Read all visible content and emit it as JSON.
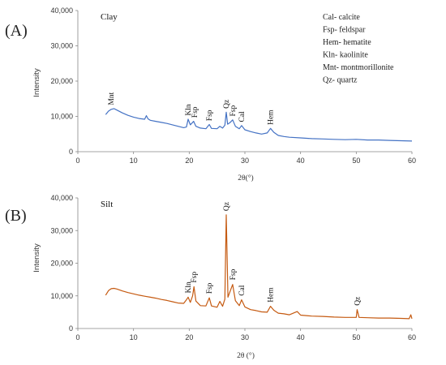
{
  "chart_data": [
    {
      "type": "line",
      "panel_label": "(A)",
      "sample_label": "Clay",
      "xlabel": "2θ(°)",
      "ylabel": "Intensity",
      "xlim": [
        0,
        60
      ],
      "ylim": [
        0,
        40000
      ],
      "x_ticks": [
        "0",
        "10",
        "20",
        "30",
        "40",
        "50",
        "60"
      ],
      "y_ticks": [
        "0",
        "10,000",
        "20,000",
        "30,000",
        "40,000"
      ],
      "color": "#4472C4",
      "grid": false,
      "series": [
        {
          "x": [
            5,
            5.5,
            6,
            6.5,
            7,
            8,
            9,
            10,
            11,
            12,
            12.3,
            12.6,
            13,
            14,
            15,
            16,
            17,
            18,
            19,
            19.5,
            19.8,
            20.2,
            20.8,
            21.2,
            22,
            23,
            23.6,
            24,
            25,
            25.5,
            26,
            26.4,
            26.65,
            26.9,
            27.3,
            27.8,
            28.3,
            29,
            29.4,
            30,
            31,
            32,
            33,
            34,
            34.6,
            35.2,
            36,
            37,
            38,
            40,
            42,
            44,
            46,
            48,
            50,
            52,
            54,
            56,
            58,
            60
          ],
          "y": [
            10500,
            11500,
            12000,
            12200,
            11800,
            11000,
            10300,
            9800,
            9400,
            9200,
            10200,
            9300,
            8900,
            8600,
            8300,
            8000,
            7600,
            7200,
            6800,
            7000,
            9200,
            7600,
            8600,
            7200,
            6700,
            6500,
            7700,
            6600,
            6500,
            7200,
            6700,
            7500,
            11200,
            7800,
            8200,
            9000,
            7200,
            6500,
            7400,
            6200,
            5700,
            5300,
            5000,
            5300,
            6600,
            5500,
            4600,
            4300,
            4100,
            3900,
            3700,
            3600,
            3500,
            3400,
            3500,
            3300,
            3300,
            3200,
            3100,
            3000
          ]
        }
      ],
      "annotations": [
        {
          "label": "Mnt",
          "x": 6,
          "y": 13200
        },
        {
          "label": "Kln",
          "x": 19.8,
          "y": 10200
        },
        {
          "label": "Fsp",
          "x": 21,
          "y": 9600
        },
        {
          "label": "Fsp",
          "x": 23.6,
          "y": 8700
        },
        {
          "label": "Qz",
          "x": 26.65,
          "y": 12200
        },
        {
          "label": "Fsp",
          "x": 27.8,
          "y": 10000
        },
        {
          "label": "Cal",
          "x": 29.4,
          "y": 8400
        },
        {
          "label": "Hem",
          "x": 34.6,
          "y": 7600
        }
      ],
      "legend_lines": [
        "Cal- calcite",
        "Fsp- feldspar",
        "Hem- hematite",
        "Kln- kaolinite",
        "Mnt- montmorillonite",
        "Qz- quartz"
      ]
    },
    {
      "type": "line",
      "panel_label": "(B)",
      "sample_label": "Silt",
      "xlabel": "2θ (°)",
      "ylabel": "Intensity",
      "xlim": [
        0,
        60
      ],
      "ylim": [
        0,
        40000
      ],
      "x_ticks": [
        "0",
        "10",
        "20",
        "30",
        "40",
        "50",
        "60"
      ],
      "y_ticks": [
        "0",
        "10,000",
        "20,000",
        "30,000",
        "40,000"
      ],
      "color": "#C55A11",
      "grid": false,
      "series": [
        {
          "x": [
            5,
            5.5,
            6,
            6.5,
            7,
            8,
            9,
            10,
            11,
            12,
            13,
            14,
            15,
            16,
            17,
            18,
            19,
            19.5,
            19.8,
            20.2,
            20.6,
            20.85,
            21.2,
            22,
            23,
            23.6,
            24,
            25,
            25.5,
            26,
            26.4,
            26.65,
            26.95,
            27.3,
            27.8,
            28.3,
            29,
            29.4,
            30,
            31,
            32,
            33,
            34,
            34.6,
            35.2,
            36,
            37,
            38,
            39.4,
            40,
            42,
            44,
            46,
            48,
            50,
            50.15,
            50.5,
            52,
            54,
            56,
            58,
            59.5,
            59.8,
            60
          ],
          "y": [
            10200,
            11600,
            12200,
            12300,
            12100,
            11500,
            11000,
            10600,
            10200,
            9900,
            9600,
            9300,
            8900,
            8600,
            8200,
            7800,
            7700,
            8800,
            9600,
            8000,
            10000,
            12800,
            8400,
            7000,
            6900,
            9400,
            6900,
            6500,
            8300,
            6800,
            9000,
            34800,
            9600,
            11200,
            13500,
            8500,
            7000,
            8800,
            6600,
            5800,
            5500,
            5100,
            5000,
            6800,
            5600,
            4700,
            4500,
            4200,
            5200,
            4100,
            3800,
            3700,
            3500,
            3400,
            3400,
            5800,
            3400,
            3300,
            3200,
            3200,
            3100,
            3000,
            4200,
            3000
          ]
        }
      ],
      "annotations": [
        {
          "label": "Kln",
          "x": 19.8,
          "y": 10800
        },
        {
          "label": "Fsp",
          "x": 20.85,
          "y": 14000
        },
        {
          "label": "Fsp",
          "x": 23.6,
          "y": 10600
        },
        {
          "label": "Qz",
          "x": 26.65,
          "y": 36000
        },
        {
          "label": "Fsp",
          "x": 27.8,
          "y": 14800
        },
        {
          "label": "Cal",
          "x": 29.4,
          "y": 10000
        },
        {
          "label": "Hem",
          "x": 34.6,
          "y": 8000
        },
        {
          "label": "Qz",
          "x": 50.15,
          "y": 7000
        }
      ]
    }
  ]
}
